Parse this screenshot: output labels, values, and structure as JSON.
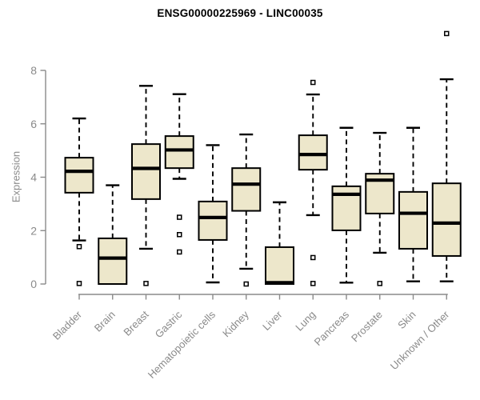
{
  "chart_data": {
    "type": "boxplot",
    "title": "ENSG00000225969 - LINC00035",
    "ylabel": "Expression",
    "xlabel": "",
    "ylim": [
      0,
      9.6
    ],
    "yticks": [
      0,
      2,
      4,
      6,
      8
    ],
    "grid": false,
    "legend": "none",
    "x_label_rotation": 45,
    "categories": [
      "Bladder",
      "Brain",
      "Breast",
      "Gastric",
      "Hematopoietic cells",
      "Kidney",
      "Liver",
      "Lung",
      "Pancreas",
      "Prostate",
      "Skin",
      "Unknown / Other"
    ],
    "series": [
      {
        "category": "Bladder",
        "whisker_low": 1.63,
        "q1": 3.42,
        "median": 4.22,
        "q3": 4.73,
        "whisker_high": 6.2,
        "outliers": [
          1.4,
          0.02
        ]
      },
      {
        "category": "Brain",
        "whisker_low": null,
        "q1": 0.0,
        "median": 0.97,
        "q3": 1.71,
        "whisker_high": 3.7,
        "outliers": []
      },
      {
        "category": "Breast",
        "whisker_low": 1.32,
        "q1": 3.18,
        "median": 4.33,
        "q3": 5.24,
        "whisker_high": 7.42,
        "outliers": [
          0.02
        ]
      },
      {
        "category": "Gastric",
        "whisker_low": 3.94,
        "q1": 4.34,
        "median": 5.02,
        "q3": 5.54,
        "whisker_high": 7.11,
        "outliers": [
          2.5,
          1.85,
          1.2
        ]
      },
      {
        "category": "Hematopoietic cells",
        "whisker_low": 0.06,
        "q1": 1.65,
        "median": 2.49,
        "q3": 3.09,
        "whisker_high": 5.2,
        "outliers": []
      },
      {
        "category": "Kidney",
        "whisker_low": 0.57,
        "q1": 2.74,
        "median": 3.74,
        "q3": 4.34,
        "whisker_high": 5.6,
        "outliers": [
          0.0
        ]
      },
      {
        "category": "Liver",
        "whisker_low": null,
        "q1": 0.0,
        "median": 0.05,
        "q3": 1.38,
        "whisker_high": 3.06,
        "outliers": []
      },
      {
        "category": "Lung",
        "whisker_low": 2.58,
        "q1": 4.28,
        "median": 4.85,
        "q3": 5.57,
        "whisker_high": 7.1,
        "outliers": [
          7.55,
          0.99,
          0.02
        ]
      },
      {
        "category": "Pancreas",
        "whisker_low": 0.05,
        "q1": 2.01,
        "median": 3.36,
        "q3": 3.66,
        "whisker_high": 5.85,
        "outliers": []
      },
      {
        "category": "Prostate",
        "whisker_low": 1.17,
        "q1": 2.64,
        "median": 3.89,
        "q3": 4.13,
        "whisker_high": 5.66,
        "outliers": [
          0.02
        ]
      },
      {
        "category": "Skin",
        "whisker_low": 0.1,
        "q1": 1.32,
        "median": 2.65,
        "q3": 3.45,
        "whisker_high": 5.85,
        "outliers": []
      },
      {
        "category": "Unknown / Other",
        "whisker_low": 0.1,
        "q1": 1.05,
        "median": 2.28,
        "q3": 3.77,
        "whisker_high": 7.67,
        "outliers": [
          9.38
        ]
      }
    ],
    "colors": {
      "box_fill": "#ede7cb",
      "box_border": "#000000",
      "median": "#000000",
      "whisker": "#000000",
      "outlier": "#000000",
      "axis": "#8a8a8a",
      "axis_text": "#8a8a8a",
      "title_text": "#000000",
      "background": "#ffffff"
    }
  }
}
